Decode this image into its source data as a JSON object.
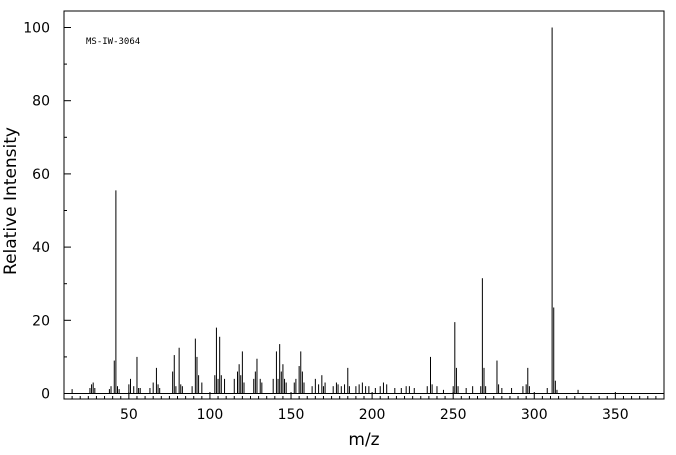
{
  "chart_data": {
    "type": "bar",
    "annotation": "MS-IW-3064",
    "xlabel": "m/z",
    "ylabel": "Relative Intensity",
    "xlim": [
      10,
      380
    ],
    "ylim": [
      0,
      105
    ],
    "x_ticks": [
      50,
      100,
      150,
      200,
      250,
      300,
      350
    ],
    "y_ticks": [
      0,
      20,
      40,
      60,
      80,
      100
    ],
    "series": [
      {
        "peaks": [
          [
            15,
            1.2
          ],
          [
            26,
            1.5
          ],
          [
            27,
            2.5
          ],
          [
            28,
            3.0
          ],
          [
            29,
            1.5
          ],
          [
            38,
            1.2
          ],
          [
            39,
            2.0
          ],
          [
            41,
            9.0
          ],
          [
            42,
            55.5
          ],
          [
            43,
            2.0
          ],
          [
            44,
            1.2
          ],
          [
            50,
            2.5
          ],
          [
            51,
            4.0
          ],
          [
            53,
            2.0
          ],
          [
            55,
            10.0
          ],
          [
            56,
            1.5
          ],
          [
            57,
            1.5
          ],
          [
            63,
            1.5
          ],
          [
            65,
            3.0
          ],
          [
            67,
            7.0
          ],
          [
            68,
            2.5
          ],
          [
            69,
            1.5
          ],
          [
            77,
            6.0
          ],
          [
            78,
            10.5
          ],
          [
            79,
            2.0
          ],
          [
            81,
            12.5
          ],
          [
            82,
            2.5
          ],
          [
            83,
            2.0
          ],
          [
            89,
            2.0
          ],
          [
            91,
            15.0
          ],
          [
            92,
            10.0
          ],
          [
            93,
            5.0
          ],
          [
            95,
            3.0
          ],
          [
            103,
            5.0
          ],
          [
            104,
            18.0
          ],
          [
            105,
            4.0
          ],
          [
            106,
            15.5
          ],
          [
            107,
            5.0
          ],
          [
            109,
            4.0
          ],
          [
            115,
            4.0
          ],
          [
            117,
            6.0
          ],
          [
            118,
            8.0
          ],
          [
            119,
            5.0
          ],
          [
            120,
            11.5
          ],
          [
            121,
            3.0
          ],
          [
            127,
            4.0
          ],
          [
            128,
            6.0
          ],
          [
            129,
            9.5
          ],
          [
            131,
            4.0
          ],
          [
            132,
            3.0
          ],
          [
            139,
            4.0
          ],
          [
            141,
            11.5
          ],
          [
            142,
            4.0
          ],
          [
            143,
            13.5
          ],
          [
            144,
            6.0
          ],
          [
            145,
            8.0
          ],
          [
            146,
            4.0
          ],
          [
            147,
            3.0
          ],
          [
            152,
            3.0
          ],
          [
            153,
            4.0
          ],
          [
            155,
            7.5
          ],
          [
            156,
            11.5
          ],
          [
            157,
            6.0
          ],
          [
            158,
            3.0
          ],
          [
            163,
            2.0
          ],
          [
            165,
            4.0
          ],
          [
            167,
            2.5
          ],
          [
            169,
            5.0
          ],
          [
            170,
            2.0
          ],
          [
            171,
            3.0
          ],
          [
            176,
            2.0
          ],
          [
            178,
            3.0
          ],
          [
            179,
            2.5
          ],
          [
            181,
            2.0
          ],
          [
            183,
            2.5
          ],
          [
            185,
            7.0
          ],
          [
            186,
            2.0
          ],
          [
            190,
            2.0
          ],
          [
            192,
            2.5
          ],
          [
            194,
            3.0
          ],
          [
            196,
            2.0
          ],
          [
            198,
            2.0
          ],
          [
            202,
            1.5
          ],
          [
            205,
            2.0
          ],
          [
            207,
            3.0
          ],
          [
            209,
            2.5
          ],
          [
            214,
            1.5
          ],
          [
            218,
            1.5
          ],
          [
            221,
            2.0
          ],
          [
            223,
            2.0
          ],
          [
            226,
            1.5
          ],
          [
            234,
            2.0
          ],
          [
            236,
            10.0
          ],
          [
            237,
            2.5
          ],
          [
            240,
            2.0
          ],
          [
            244,
            1.0
          ],
          [
            250,
            2.0
          ],
          [
            251,
            19.5
          ],
          [
            252,
            7.0
          ],
          [
            253,
            2.0
          ],
          [
            258,
            1.5
          ],
          [
            262,
            2.0
          ],
          [
            267,
            2.0
          ],
          [
            268,
            31.5
          ],
          [
            269,
            7.0
          ],
          [
            270,
            2.0
          ],
          [
            277,
            9.0
          ],
          [
            278,
            2.5
          ],
          [
            280,
            1.5
          ],
          [
            286,
            1.5
          ],
          [
            293,
            2.0
          ],
          [
            295,
            2.5
          ],
          [
            296,
            7.0
          ],
          [
            297,
            2.0
          ],
          [
            308,
            1.5
          ],
          [
            311,
            100.0
          ],
          [
            312,
            23.5
          ],
          [
            313,
            3.5
          ],
          [
            314,
            1.0
          ],
          [
            327,
            1.0
          ]
        ]
      }
    ]
  }
}
